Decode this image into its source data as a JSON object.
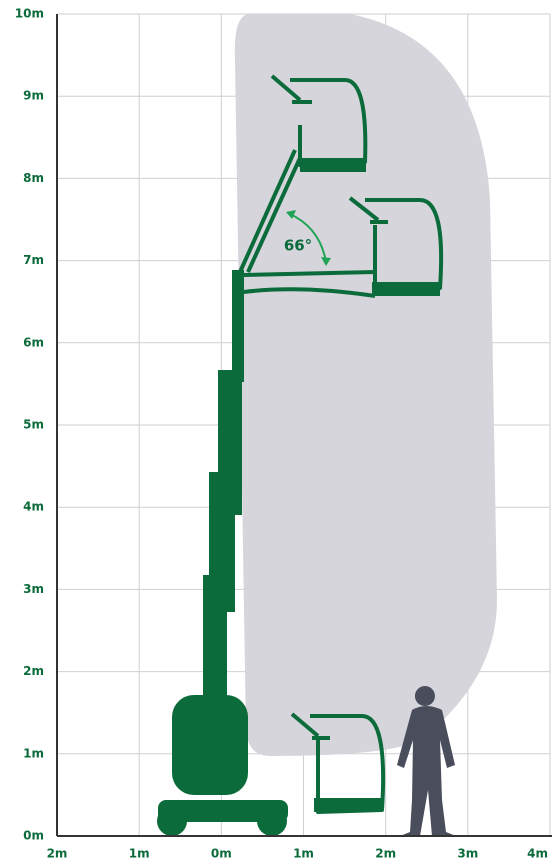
{
  "axes": {
    "xticks": [
      {
        "value": -2,
        "label": "2m"
      },
      {
        "value": -1,
        "label": "1m"
      },
      {
        "value": 0,
        "label": "0m"
      },
      {
        "value": 1,
        "label": "1m"
      },
      {
        "value": 2,
        "label": "2m"
      },
      {
        "value": 3,
        "label": "3m"
      },
      {
        "value": 4,
        "label": "4m"
      }
    ],
    "yticks": [
      {
        "value": 0,
        "label": "0m"
      },
      {
        "value": 1,
        "label": "1m"
      },
      {
        "value": 2,
        "label": "2m"
      },
      {
        "value": 3,
        "label": "3m"
      },
      {
        "value": 4,
        "label": "4m"
      },
      {
        "value": 5,
        "label": "5m"
      },
      {
        "value": 6,
        "label": "6m"
      },
      {
        "value": 7,
        "label": "7m"
      },
      {
        "value": 8,
        "label": "8m"
      },
      {
        "value": 9,
        "label": "9m"
      },
      {
        "value": 10,
        "label": "10m"
      }
    ],
    "xlim": [
      -2,
      4
    ],
    "ylim": [
      0,
      10
    ]
  },
  "annotation": "66°"
}
